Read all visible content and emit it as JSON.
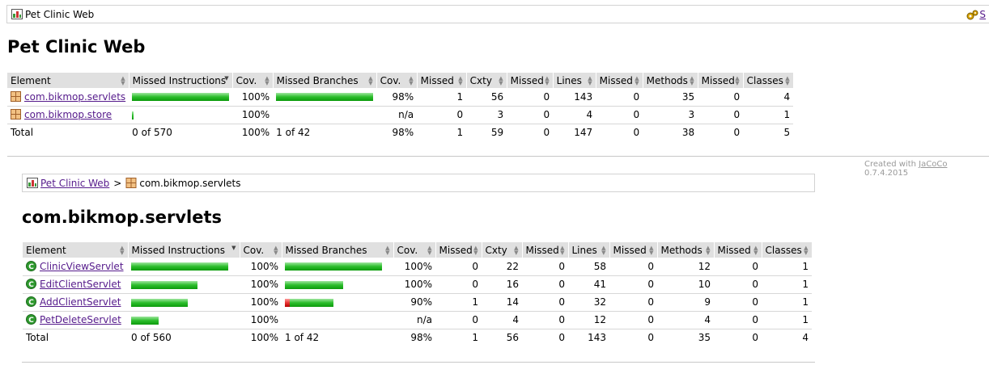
{
  "top_breadcrumb": {
    "label": "Pet Clinic Web",
    "right_link": "S"
  },
  "report": {
    "title": "Pet Clinic Web",
    "headers": [
      "Element",
      "Missed Instructions",
      "Cov.",
      "Missed Branches",
      "Cov.",
      "Missed",
      "Cxty",
      "Missed",
      "Lines",
      "Missed",
      "Methods",
      "Missed",
      "Classes"
    ],
    "rows": [
      {
        "name": "com.bikmop.servlets",
        "instr_cov": "100%",
        "instr_bar": 1.0,
        "br_red": 0,
        "br_green": 1.0,
        "branch_cov": "98%",
        "missed_cxty": "1",
        "cxty": "56",
        "missed_lines": "0",
        "lines": "143",
        "missed_methods": "0",
        "methods": "35",
        "missed_classes": "0",
        "classes": "4"
      },
      {
        "name": "com.bikmop.store",
        "instr_cov": "100%",
        "instr_bar": 0.01,
        "br_red": 0,
        "br_green": 0,
        "branch_cov": "n/a",
        "missed_cxty": "0",
        "cxty": "3",
        "missed_lines": "0",
        "lines": "4",
        "missed_methods": "0",
        "methods": "3",
        "missed_classes": "0",
        "classes": "1"
      }
    ],
    "total": {
      "label": "Total",
      "instr": "0 of 570",
      "instr_cov": "100%",
      "branches": "1 of 42",
      "branch_cov": "98%",
      "missed_cxty": "1",
      "cxty": "59",
      "missed_lines": "0",
      "lines": "147",
      "missed_methods": "0",
      "methods": "38",
      "missed_classes": "0",
      "classes": "5"
    }
  },
  "footer": {
    "prefix": "Created with ",
    "link": "JaCoCo",
    "version": " 0.7.4.2015"
  },
  "package_breadcrumb": {
    "root": "Pet Clinic Web",
    "separator": ">",
    "current": "com.bikmop.servlets"
  },
  "package": {
    "title": "com.bikmop.servlets",
    "headers": [
      "Element",
      "Missed Instructions",
      "Cov.",
      "Missed Branches",
      "Cov.",
      "Missed",
      "Cxty",
      "Missed",
      "Lines",
      "Missed",
      "Methods",
      "Missed",
      "Classes"
    ],
    "rows": [
      {
        "name": "ClinicViewServlet",
        "instr_cov": "100%",
        "instr_bar": 1.0,
        "br_red": 0,
        "br_green": 1.0,
        "branch_cov": "100%",
        "missed_cxty": "0",
        "cxty": "22",
        "missed_lines": "0",
        "lines": "58",
        "missed_methods": "0",
        "methods": "12",
        "missed_classes": "0",
        "classes": "1"
      },
      {
        "name": "EditClientServlet",
        "instr_cov": "100%",
        "instr_bar": 0.68,
        "br_red": 0,
        "br_green": 0.6,
        "branch_cov": "100%",
        "missed_cxty": "0",
        "cxty": "16",
        "missed_lines": "0",
        "lines": "41",
        "missed_methods": "0",
        "methods": "10",
        "missed_classes": "0",
        "classes": "1"
      },
      {
        "name": "AddClientServlet",
        "instr_cov": "100%",
        "instr_bar": 0.58,
        "br_red": 0.05,
        "br_green": 0.45,
        "branch_cov": "90%",
        "missed_cxty": "1",
        "cxty": "14",
        "missed_lines": "0",
        "lines": "32",
        "missed_methods": "0",
        "methods": "9",
        "missed_classes": "0",
        "classes": "1"
      },
      {
        "name": "PetDeleteServlet",
        "instr_cov": "100%",
        "instr_bar": 0.28,
        "br_red": 0,
        "br_green": 0,
        "branch_cov": "n/a",
        "missed_cxty": "0",
        "cxty": "4",
        "missed_lines": "0",
        "lines": "12",
        "missed_methods": "0",
        "methods": "4",
        "missed_classes": "0",
        "classes": "1"
      }
    ],
    "total": {
      "label": "Total",
      "instr": "0 of 560",
      "instr_cov": "100%",
      "branches": "1 of 42",
      "branch_cov": "98%",
      "missed_cxty": "1",
      "cxty": "56",
      "missed_lines": "0",
      "lines": "143",
      "missed_methods": "0",
      "methods": "35",
      "missed_classes": "0",
      "classes": "4"
    }
  },
  "icons": {
    "report": "report-icon",
    "package": "package-icon",
    "class": "class-icon",
    "session": "session-icon"
  },
  "colors": {
    "bar_green": "#2bbd2b",
    "bar_red": "#e83434",
    "header_bg": "#e0e0e0",
    "link": "#551A8B"
  }
}
